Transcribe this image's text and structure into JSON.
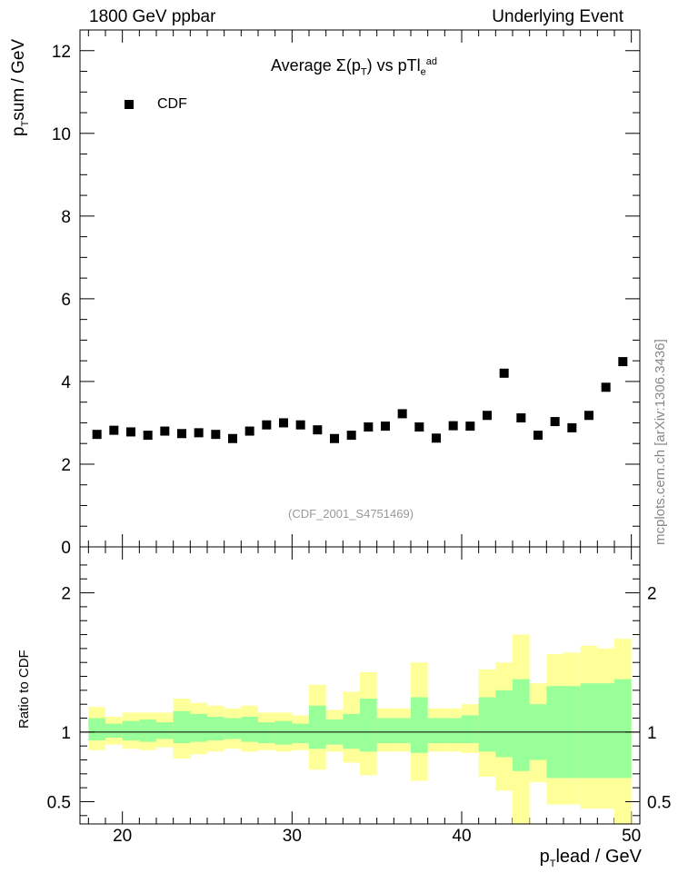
{
  "header": {
    "left": "1800 GeV ppbar",
    "right": "Underlying Event"
  },
  "side_label": "mcplots.cern.ch [arXiv:1306.3436]",
  "analysis_id": "(CDF_2001_S4751469)",
  "colors": {
    "data": "#000000",
    "band_inner": "#99ff99",
    "band_outer": "#ffff99",
    "analysis_id": "#999999"
  },
  "chart_data": [
    {
      "type": "scatter",
      "title": "Average Σ(pT) vs pTlead",
      "xlabel": "pTlead / GeV",
      "ylabel": "pTsum / GeV",
      "xlim": [
        17.5,
        50.5
      ],
      "ylim": [
        0,
        12.5
      ],
      "y_ticks": [
        0,
        2,
        4,
        6,
        8,
        10,
        12
      ],
      "x_ticks": [
        20,
        30,
        40,
        50
      ],
      "legend": {
        "entries": [
          "CDF"
        ],
        "placement": "top-left"
      },
      "series": [
        {
          "name": "CDF",
          "x": [
            18.5,
            19.5,
            20.5,
            21.5,
            22.5,
            23.5,
            24.5,
            25.5,
            26.5,
            27.5,
            28.5,
            29.5,
            30.5,
            31.5,
            32.5,
            33.5,
            34.5,
            35.5,
            36.5,
            37.5,
            38.5,
            39.5,
            40.5,
            41.5,
            42.5,
            43.5,
            44.5,
            45.5,
            46.5,
            47.5,
            48.5,
            49.5
          ],
          "y": [
            2.72,
            2.82,
            2.78,
            2.7,
            2.8,
            2.74,
            2.76,
            2.72,
            2.62,
            2.8,
            2.95,
            3.0,
            2.95,
            2.83,
            2.62,
            2.7,
            2.9,
            2.92,
            3.22,
            2.9,
            2.63,
            2.93,
            2.92,
            3.18,
            4.2,
            3.12,
            2.7,
            3.03,
            2.88,
            3.18,
            3.86,
            4.48
          ]
        }
      ]
    },
    {
      "type": "area",
      "ylabel": "Ratio to CDF",
      "xlim": [
        17.5,
        50.5
      ],
      "ylim": [
        0.34,
        2.33
      ],
      "y_ticks": [
        0.5,
        1,
        2
      ],
      "x_ticks": [
        20,
        30,
        40,
        50
      ],
      "reference_line": 1,
      "bins": [
        18,
        19,
        20,
        21,
        22,
        23,
        24,
        25,
        26,
        27,
        28,
        29,
        30,
        31,
        32,
        33,
        34,
        35,
        36,
        37,
        38,
        39,
        40,
        41,
        42,
        43,
        44,
        45,
        46,
        47,
        48,
        49,
        50
      ],
      "series": [
        {
          "name": "stat",
          "upper": [
            1.1,
            1.06,
            1.08,
            1.09,
            1.07,
            1.15,
            1.13,
            1.11,
            1.1,
            1.11,
            1.07,
            1.08,
            1.06,
            1.19,
            1.09,
            1.13,
            1.24,
            1.1,
            1.1,
            1.25,
            1.1,
            1.1,
            1.12,
            1.25,
            1.3,
            1.38,
            1.2,
            1.33,
            1.33,
            1.35,
            1.35,
            1.38
          ],
          "lower": [
            0.94,
            0.96,
            0.94,
            0.93,
            0.95,
            0.92,
            0.93,
            0.94,
            0.95,
            0.93,
            0.92,
            0.91,
            0.92,
            0.88,
            0.91,
            0.88,
            0.86,
            0.92,
            0.92,
            0.85,
            0.92,
            0.92,
            0.92,
            0.86,
            0.82,
            0.72,
            0.8,
            0.67,
            0.67,
            0.67,
            0.67,
            0.67
          ]
        },
        {
          "name": "syst",
          "upper": [
            1.18,
            1.11,
            1.14,
            1.14,
            1.14,
            1.24,
            1.21,
            1.19,
            1.17,
            1.19,
            1.14,
            1.14,
            1.12,
            1.34,
            1.16,
            1.29,
            1.43,
            1.17,
            1.17,
            1.5,
            1.17,
            1.17,
            1.2,
            1.45,
            1.5,
            1.7,
            1.35,
            1.56,
            1.57,
            1.62,
            1.6,
            1.67
          ],
          "lower": [
            0.87,
            0.91,
            0.88,
            0.87,
            0.89,
            0.81,
            0.84,
            0.86,
            0.88,
            0.86,
            0.87,
            0.86,
            0.87,
            0.73,
            0.86,
            0.78,
            0.69,
            0.86,
            0.86,
            0.65,
            0.86,
            0.86,
            0.85,
            0.68,
            0.58,
            0.34,
            0.64,
            0.48,
            0.48,
            0.45,
            0.45,
            0.34
          ]
        }
      ]
    }
  ]
}
